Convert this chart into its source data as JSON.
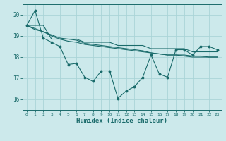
{
  "title": "",
  "xlabel": "Humidex (Indice chaleur)",
  "ylabel": "",
  "background_color": "#cce9eb",
  "grid_color": "#aad4d7",
  "line_color": "#1a6b6b",
  "xlim": [
    -0.5,
    23.5
  ],
  "ylim": [
    15.5,
    20.5
  ],
  "yticks": [
    16,
    17,
    18,
    19,
    20
  ],
  "xticks": [
    0,
    1,
    2,
    3,
    4,
    5,
    6,
    7,
    8,
    9,
    10,
    11,
    12,
    13,
    14,
    15,
    16,
    17,
    18,
    19,
    20,
    21,
    22,
    23
  ],
  "series_main": [
    19.5,
    20.2,
    18.9,
    18.7,
    18.5,
    17.65,
    17.7,
    17.05,
    16.85,
    17.35,
    17.35,
    16.05,
    16.4,
    16.6,
    17.05,
    18.1,
    17.2,
    17.05,
    18.35,
    18.35,
    18.1,
    18.5,
    18.5,
    18.35
  ],
  "series_smooth": [
    [
      19.5,
      19.5,
      19.5,
      18.85,
      18.85,
      18.85,
      18.85,
      18.7,
      18.7,
      18.7,
      18.7,
      18.55,
      18.55,
      18.55,
      18.55,
      18.4,
      18.4,
      18.4,
      18.4,
      18.4,
      18.25,
      18.25,
      18.25,
      18.25
    ],
    [
      19.5,
      19.35,
      19.2,
      19.05,
      18.9,
      18.85,
      18.8,
      18.65,
      18.6,
      18.55,
      18.5,
      18.45,
      18.4,
      18.35,
      18.3,
      18.2,
      18.15,
      18.1,
      18.1,
      18.1,
      18.05,
      18.05,
      18.0,
      18.0
    ],
    [
      19.5,
      19.3,
      19.2,
      19.0,
      18.85,
      18.75,
      18.7,
      18.6,
      18.55,
      18.5,
      18.45,
      18.4,
      18.35,
      18.3,
      18.25,
      18.2,
      18.15,
      18.1,
      18.1,
      18.05,
      18.0,
      18.0,
      18.0,
      18.0
    ]
  ]
}
